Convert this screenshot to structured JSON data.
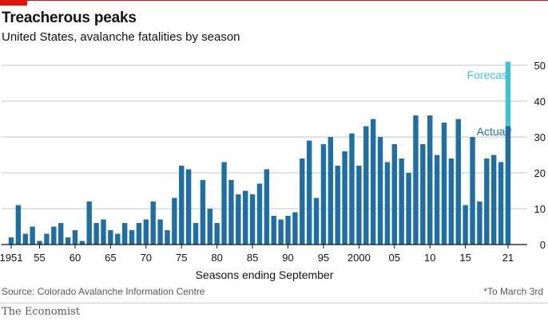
{
  "header": {
    "title": "Treacherous peaks",
    "subtitle": "United States, avalanche fatalities by season"
  },
  "footer": {
    "source": "Source: Colorado Avalanche Information Centre",
    "note": "*To March 3rd",
    "brand": "The Economist"
  },
  "colors": {
    "actual": "#1f6fa5",
    "forecast": "#3ec1dc",
    "grid": "#b8c8d4",
    "axis": "#121212"
  },
  "chart_data": {
    "type": "bar",
    "xlabel": "Seasons ending September",
    "ylabel": "",
    "ylim": [
      0,
      52
    ],
    "yticks": [
      0,
      10,
      20,
      30,
      40,
      50
    ],
    "grid": true,
    "x_tick_labels": [
      {
        "year": 1951,
        "label": "1951"
      },
      {
        "year": 1955,
        "label": "55"
      },
      {
        "year": 1960,
        "label": "60"
      },
      {
        "year": 1965,
        "label": "65"
      },
      {
        "year": 1970,
        "label": "70"
      },
      {
        "year": 1975,
        "label": "75"
      },
      {
        "year": 1980,
        "label": "80"
      },
      {
        "year": 1985,
        "label": "85"
      },
      {
        "year": 1990,
        "label": "90"
      },
      {
        "year": 1995,
        "label": "95"
      },
      {
        "year": 2000,
        "label": "2000"
      },
      {
        "year": 2005,
        "label": "05"
      },
      {
        "year": 2010,
        "label": "10"
      },
      {
        "year": 2015,
        "label": "15"
      },
      {
        "year": 2021,
        "label": "21"
      }
    ],
    "series": [
      {
        "name": "Actual*",
        "x": [
          1951,
          1952,
          1953,
          1954,
          1955,
          1956,
          1957,
          1958,
          1959,
          1960,
          1961,
          1962,
          1963,
          1964,
          1965,
          1966,
          1967,
          1968,
          1969,
          1970,
          1971,
          1972,
          1973,
          1974,
          1975,
          1976,
          1977,
          1978,
          1979,
          1980,
          1981,
          1982,
          1983,
          1984,
          1985,
          1986,
          1987,
          1988,
          1989,
          1990,
          1991,
          1992,
          1993,
          1994,
          1995,
          1996,
          1997,
          1998,
          1999,
          2000,
          2001,
          2002,
          2003,
          2004,
          2005,
          2006,
          2007,
          2008,
          2009,
          2010,
          2011,
          2012,
          2013,
          2014,
          2015,
          2016,
          2017,
          2018,
          2019,
          2020,
          2021
        ],
        "values": [
          2,
          11,
          3,
          5,
          1,
          3,
          5,
          6,
          2,
          4,
          1,
          12,
          6,
          7,
          4,
          3,
          6,
          4,
          6,
          7,
          12,
          7,
          4,
          13,
          22,
          21,
          6,
          18,
          10,
          6,
          23,
          18,
          14,
          15,
          14,
          17,
          21,
          8,
          7,
          8,
          9,
          24,
          29,
          13,
          28,
          30,
          22,
          26,
          31,
          22,
          33,
          35,
          30,
          23,
          28,
          24,
          20,
          36,
          28,
          36,
          25,
          34,
          24,
          35,
          11,
          30,
          12,
          24,
          25,
          23,
          33
        ]
      },
      {
        "name": "Forecast",
        "x": [
          2021
        ],
        "values": [
          51
        ]
      }
    ]
  }
}
